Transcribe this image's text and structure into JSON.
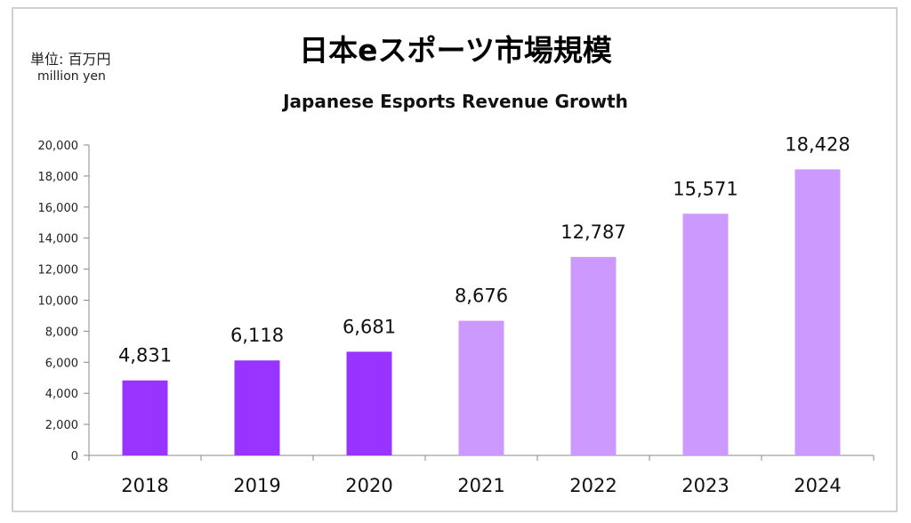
{
  "header": {
    "unit_jp": "単位: 百万円",
    "unit_en": "million yen",
    "title_jp": "日本eスポーツ市場規模",
    "title_en": "Japanese Esports Revenue Growth"
  },
  "chart_data": {
    "type": "bar",
    "title": "日本eスポーツ市場規模",
    "subtitle": "Japanese Esports Revenue Growth",
    "xlabel": "",
    "ylabel": "",
    "unit": "million yen",
    "categories": [
      "2018",
      "2019",
      "2020",
      "2021",
      "2022",
      "2023",
      "2024"
    ],
    "values": [
      4831,
      6118,
      6681,
      8676,
      12787,
      15571,
      18428
    ],
    "value_labels": [
      "4,831",
      "6,118",
      "6,681",
      "8,676",
      "12,787",
      "15,571",
      "18,428"
    ],
    "bar_colors": [
      "#9933ff",
      "#9933ff",
      "#9933ff",
      "#cc99ff",
      "#cc99ff",
      "#cc99ff",
      "#cc99ff"
    ],
    "ylim": [
      0,
      20000
    ],
    "yticks": [
      0,
      2000,
      4000,
      6000,
      8000,
      10000,
      12000,
      14000,
      16000,
      18000,
      20000
    ],
    "ytick_labels": [
      "0",
      "2,000",
      "4,000",
      "6,000",
      "8,000",
      "10,000",
      "12,000",
      "14,000",
      "16,000",
      "18,000",
      "20,000"
    ],
    "grid": false,
    "legend": "none"
  },
  "colors": {
    "actual": "#9933ff",
    "forecast": "#cc99ff",
    "axis": "#888888"
  }
}
